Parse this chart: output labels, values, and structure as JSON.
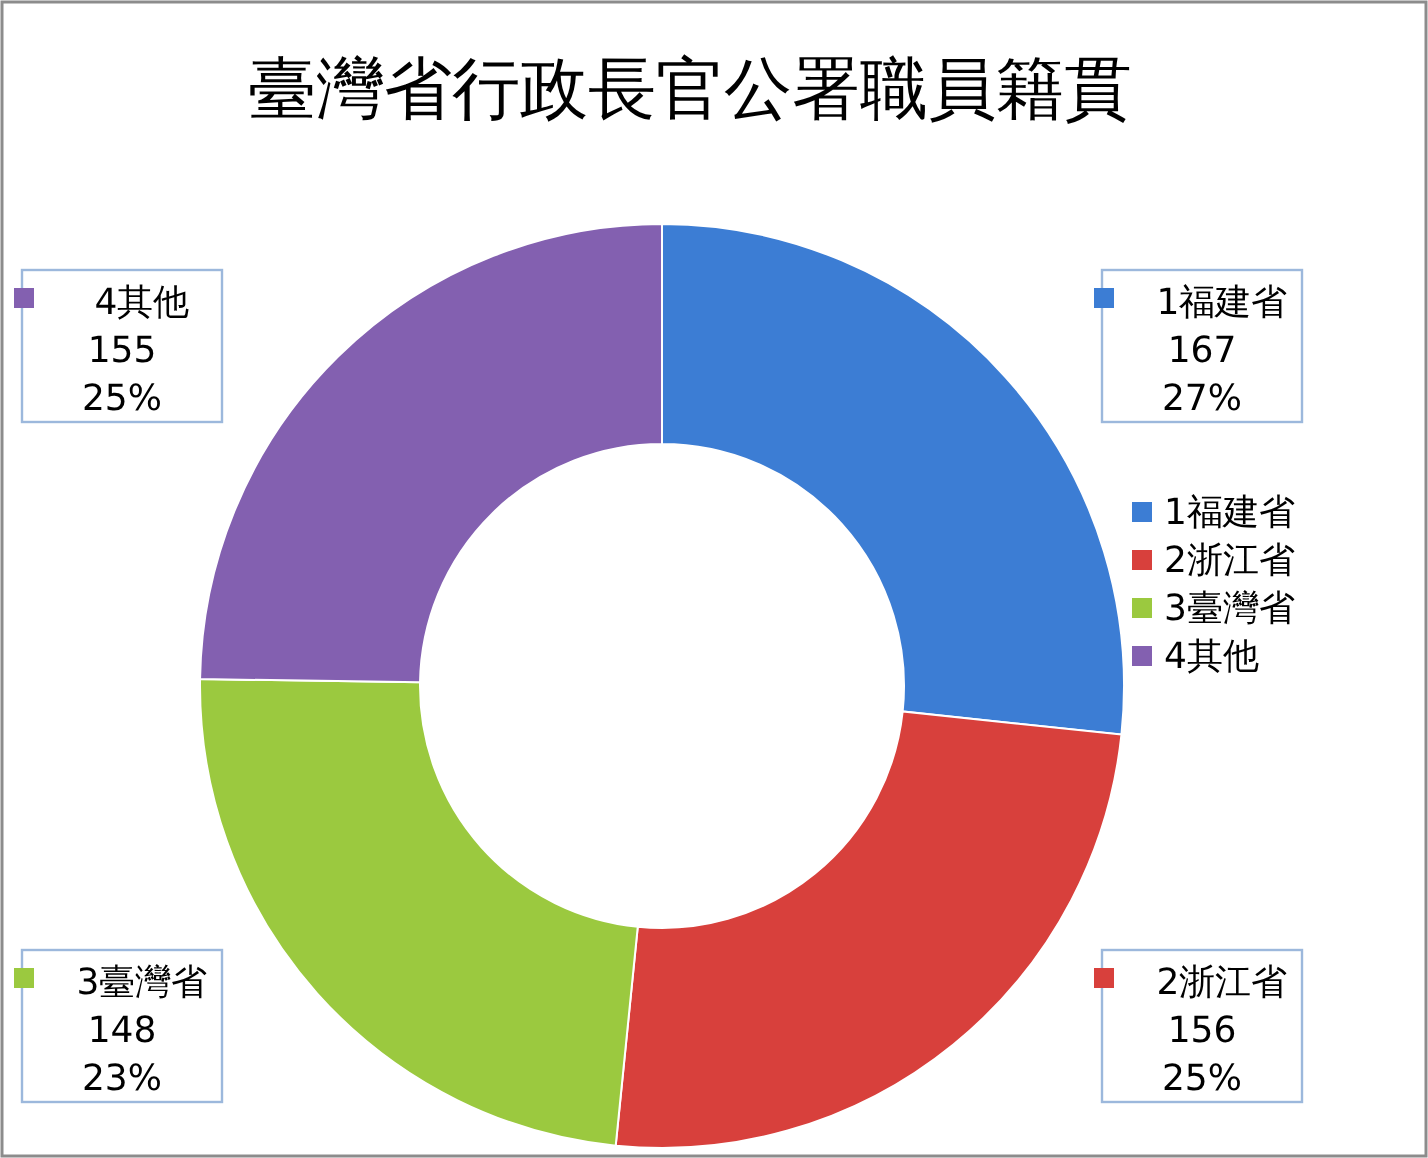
{
  "chart_data": {
    "type": "donut",
    "title": "臺灣省行政長官公署職員籍貫",
    "categories": [
      "1福建省",
      "2浙江省",
      "3臺灣省",
      "4其他"
    ],
    "values": [
      167,
      156,
      148,
      155
    ],
    "colors": [
      "#3c7dd4",
      "#d8403c",
      "#9bc93f",
      "#8360b0"
    ],
    "value_labels": [
      "167\n27%",
      "156\n25%",
      "148\n23%",
      "155\n25%"
    ],
    "legend": "right"
  }
}
